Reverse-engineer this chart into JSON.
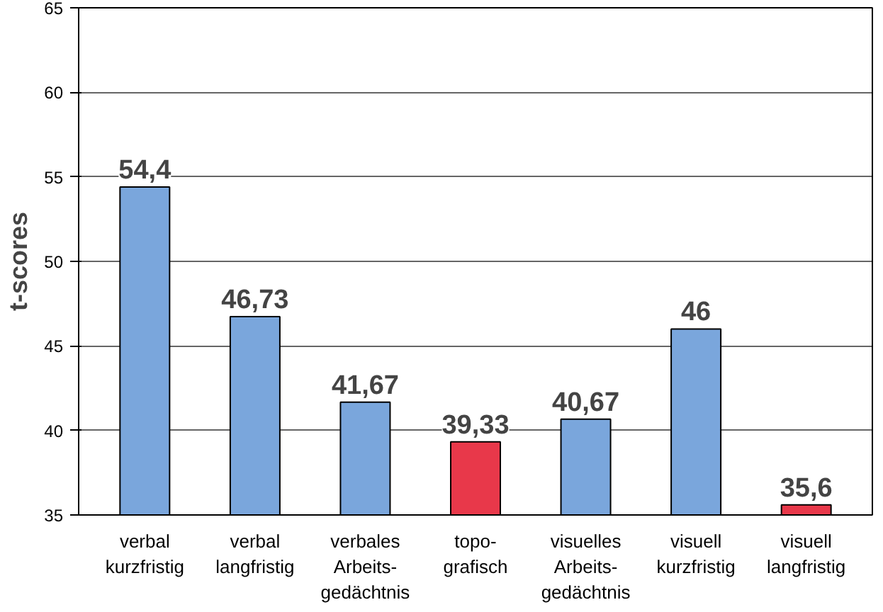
{
  "chart_data": {
    "type": "bar",
    "ylabel": "t-scores",
    "categories": [
      "verbal\nkurzfristig",
      "verbal\nlangfristig",
      "verbales\nArbeits-\ngedächtnis",
      "topo-\ngrafisch",
      "visuelles\nArbeits-\ngedächtnis",
      "visuell\nkurzfristig",
      "visuell\nlangfristig"
    ],
    "values": [
      54.4,
      46.73,
      41.67,
      39.33,
      40.67,
      46,
      35.6
    ],
    "value_labels": [
      "54,4",
      "46,73",
      "41,67",
      "39,33",
      "40,67",
      "46",
      "35,6"
    ],
    "colors": [
      "#7aa6dc",
      "#7aa6dc",
      "#7aa6dc",
      "#e8384a",
      "#7aa6dc",
      "#7aa6dc",
      "#e8384a"
    ],
    "ylim": [
      35,
      65
    ],
    "yticks": [
      35,
      40,
      45,
      50,
      55,
      60,
      65
    ],
    "grid": "y"
  }
}
